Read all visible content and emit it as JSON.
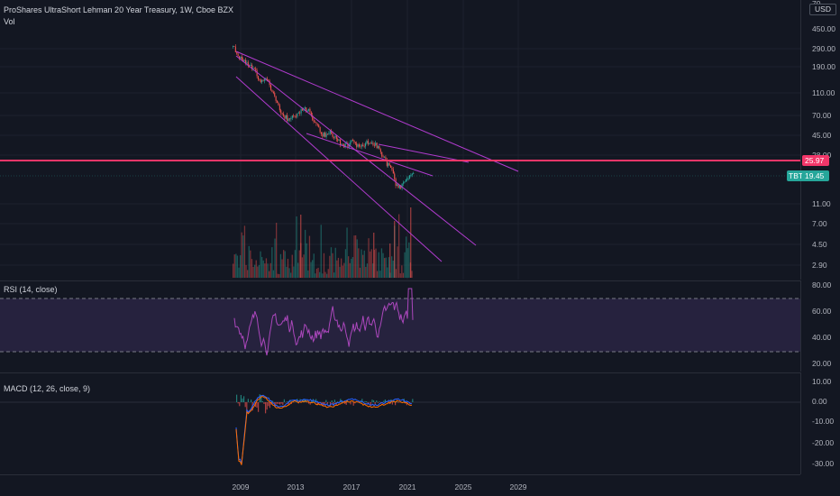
{
  "header": {
    "title": "ProShares UltraShort Lehman 20 Year Treasury, 1W, Cboe BZX",
    "volume_label": "Vol"
  },
  "price_scale": {
    "currency": "USD",
    "ticks": [
      "450.00",
      "290.00",
      "190.00",
      "110.00",
      "70.00",
      "45.00",
      "28.00",
      "11.00",
      "7.00",
      "4.50",
      "2.90"
    ],
    "top_partial_tick": "70"
  },
  "horizontal_line": {
    "value": "25.97",
    "color": "#f23669"
  },
  "last_price": {
    "symbol": "TBT",
    "value": "19.45",
    "color": "#26a69a"
  },
  "rsi": {
    "title": "RSI (14, close)",
    "ticks": [
      "80.00",
      "60.00",
      "40.00",
      "20.00"
    ],
    "band_color": "#7e57c2",
    "line_color": "#ab47bc"
  },
  "macd": {
    "title": "MACD (12, 26, close, 9)",
    "ticks": [
      "10.00",
      "0.00",
      "-10.00",
      "-20.00",
      "-30.00"
    ]
  },
  "time_axis": {
    "labels": [
      "2009",
      "2013",
      "2017",
      "2021",
      "2025",
      "2029"
    ]
  },
  "colors": {
    "background": "#131722",
    "up": "#26a69a",
    "down": "#ef5350",
    "trendline": "#b13bcf",
    "macd_line": "#2962ff",
    "signal_line": "#ff6d00"
  }
}
